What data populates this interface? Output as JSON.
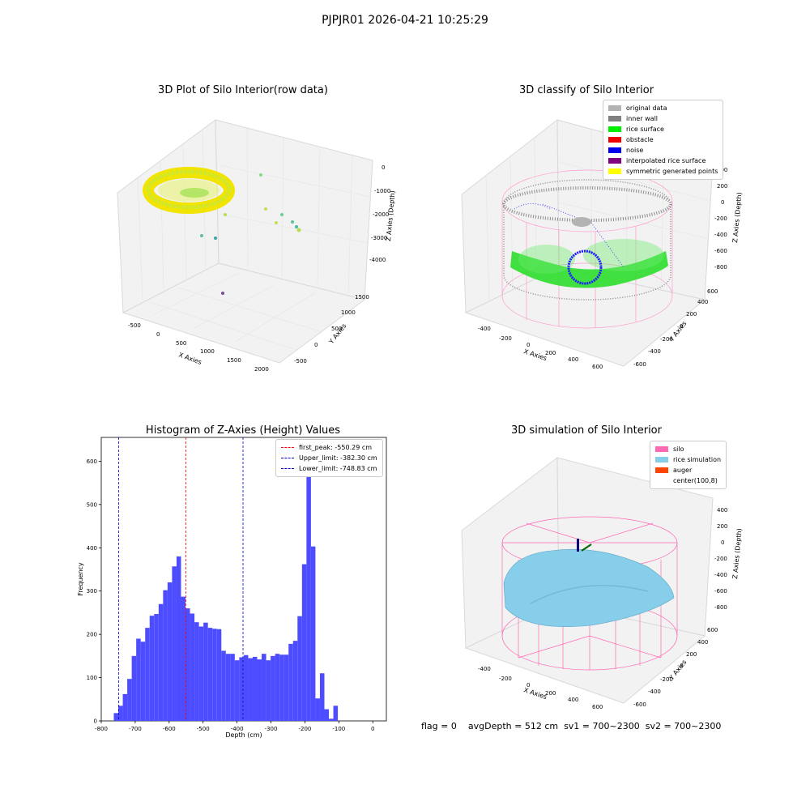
{
  "suptitle": "PJPJR01 2026-04-21 10:25:29",
  "panels": {
    "raw": {
      "title": "3D Plot of Silo Interior(row data)",
      "x_label": "X Axies",
      "y_label": "Y Axies",
      "z_label": "Z Axies (Depth)",
      "x_ticks": [
        "-500",
        "0",
        "500",
        "1000",
        "1500",
        "2000"
      ],
      "y_ticks": [
        "-500",
        "0",
        "500",
        "1000",
        "1500"
      ],
      "z_ticks": [
        "0",
        "-1000",
        "-2000",
        "-3000",
        "-4000"
      ]
    },
    "classify": {
      "title": "3D classify of Silo Interior",
      "x_label": "X Axies",
      "y_label": "Y Axies",
      "z_label": "Z Axies (Depth)",
      "x_ticks": [
        "-400",
        "-200",
        "0",
        "200",
        "400",
        "600"
      ],
      "y_ticks": [
        "-600",
        "-400",
        "-200",
        "0",
        "200",
        "400",
        "600"
      ],
      "z_ticks": [
        "400",
        "200",
        "0",
        "-200",
        "-400",
        "-600",
        "-800"
      ],
      "legend": [
        {
          "label": "original data",
          "color": "#b3b3b3"
        },
        {
          "label": "inner wall",
          "color": "#808080"
        },
        {
          "label": "rice surface",
          "color": "#00ee00"
        },
        {
          "label": "obstacle",
          "color": "#ee0000"
        },
        {
          "label": "noise",
          "color": "#0000ee"
        },
        {
          "label": "interpolated rice surface",
          "color": "#800080"
        },
        {
          "label": "symmetric generated points",
          "color": "#ffff00"
        }
      ]
    },
    "simulation": {
      "title": "3D simulation of Silo Interior",
      "x_label": "X Axies",
      "y_label": "Y Axies",
      "z_label": "Z Axies (Depth)",
      "x_ticks": [
        "-400",
        "-200",
        "0",
        "200",
        "400",
        "600"
      ],
      "y_ticks": [
        "-600",
        "-400",
        "-200",
        "0",
        "200",
        "400",
        "600"
      ],
      "z_ticks": [
        "400",
        "200",
        "0",
        "-200",
        "-400",
        "-600",
        "-800"
      ],
      "legend": [
        {
          "label": "silo",
          "color": "#ff69b4"
        },
        {
          "label": "rice simulation",
          "color": "#87ceeb"
        },
        {
          "label": "auger",
          "color": "#ff4500"
        },
        {
          "label": "center(100,8)",
          "color": ""
        }
      ]
    }
  },
  "footer": {
    "flag": "flag = 0",
    "stats": "avgDepth = 512 cm  sv1 = 700~2300  sv2 = 700~2300"
  },
  "chart_data": [
    {
      "type": "bar",
      "title": "Histogram of Z-Axies (Height) Values",
      "xlabel": "Depth (cm)",
      "ylabel": "Frequency",
      "xlim": [
        -800,
        40
      ],
      "ylim": [
        0,
        655
      ],
      "x_ticks": [
        -800,
        -700,
        -600,
        -500,
        -400,
        -300,
        -200,
        -100,
        0
      ],
      "y_ticks": [
        0,
        100,
        200,
        300,
        400,
        500,
        600
      ],
      "bin_width": 13.2,
      "bin_start": -763,
      "values": [
        18,
        35,
        62,
        97,
        150,
        190,
        183,
        215,
        243,
        247,
        270,
        302,
        320,
        357,
        380,
        287,
        260,
        248,
        228,
        218,
        227,
        215,
        213,
        212,
        162,
        155,
        155,
        140,
        147,
        152,
        145,
        148,
        142,
        155,
        140,
        150,
        155,
        153,
        153,
        178,
        185,
        242,
        362,
        625,
        403,
        52,
        110,
        27,
        5,
        35
      ],
      "lines": [
        {
          "label": "first_peak: -550.29 cm",
          "x": -550.29,
          "color": "#ff0000"
        },
        {
          "label": "Upper_limit: -382.30 cm",
          "x": -382.3,
          "color": "#0000cc"
        },
        {
          "label": "Lower_limit: -748.83 cm",
          "x": -748.83,
          "color": "#0000cc"
        }
      ],
      "bar_color": "#4d4dff",
      "legend_position": "upper right"
    }
  ]
}
